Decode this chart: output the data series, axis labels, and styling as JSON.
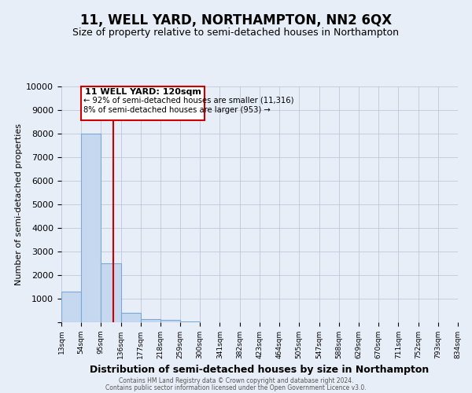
{
  "title": "11, WELL YARD, NORTHAMPTON, NN2 6QX",
  "subtitle": "Size of property relative to semi-detached houses in Northampton",
  "xlabel": "Distribution of semi-detached houses by size in Northampton",
  "ylabel": "Number of semi-detached properties",
  "bin_edges": [
    13,
    54,
    95,
    136,
    177,
    218,
    259,
    300,
    341,
    382,
    423,
    464,
    505,
    547,
    588,
    629,
    670,
    711,
    752,
    793,
    834
  ],
  "bar_heights": [
    1300,
    8000,
    2500,
    400,
    150,
    100,
    50,
    0,
    0,
    0,
    0,
    0,
    0,
    0,
    0,
    0,
    0,
    0,
    0,
    0
  ],
  "bar_color": "#c5d8f0",
  "bar_edgecolor": "#7aaad4",
  "property_line_x": 120,
  "property_line_color": "#cc0000",
  "ylim": [
    0,
    10000
  ],
  "yticks": [
    0,
    1000,
    2000,
    3000,
    4000,
    5000,
    6000,
    7000,
    8000,
    9000,
    10000
  ],
  "annotation_title": "11 WELL YARD: 120sqm",
  "annotation_line1": "← 92% of semi-detached houses are smaller (11,316)",
  "annotation_line2": "8% of semi-detached houses are larger (953) →",
  "annotation_box_color": "#cc0000",
  "footer_line1": "Contains HM Land Registry data © Crown copyright and database right 2024.",
  "footer_line2": "Contains public sector information licensed under the Open Government Licence v3.0.",
  "background_color": "#e8eef8",
  "grid_color": "#c0c8d8",
  "title_fontsize": 12,
  "subtitle_fontsize": 9,
  "xlabel_fontsize": 9,
  "ylabel_fontsize": 8
}
